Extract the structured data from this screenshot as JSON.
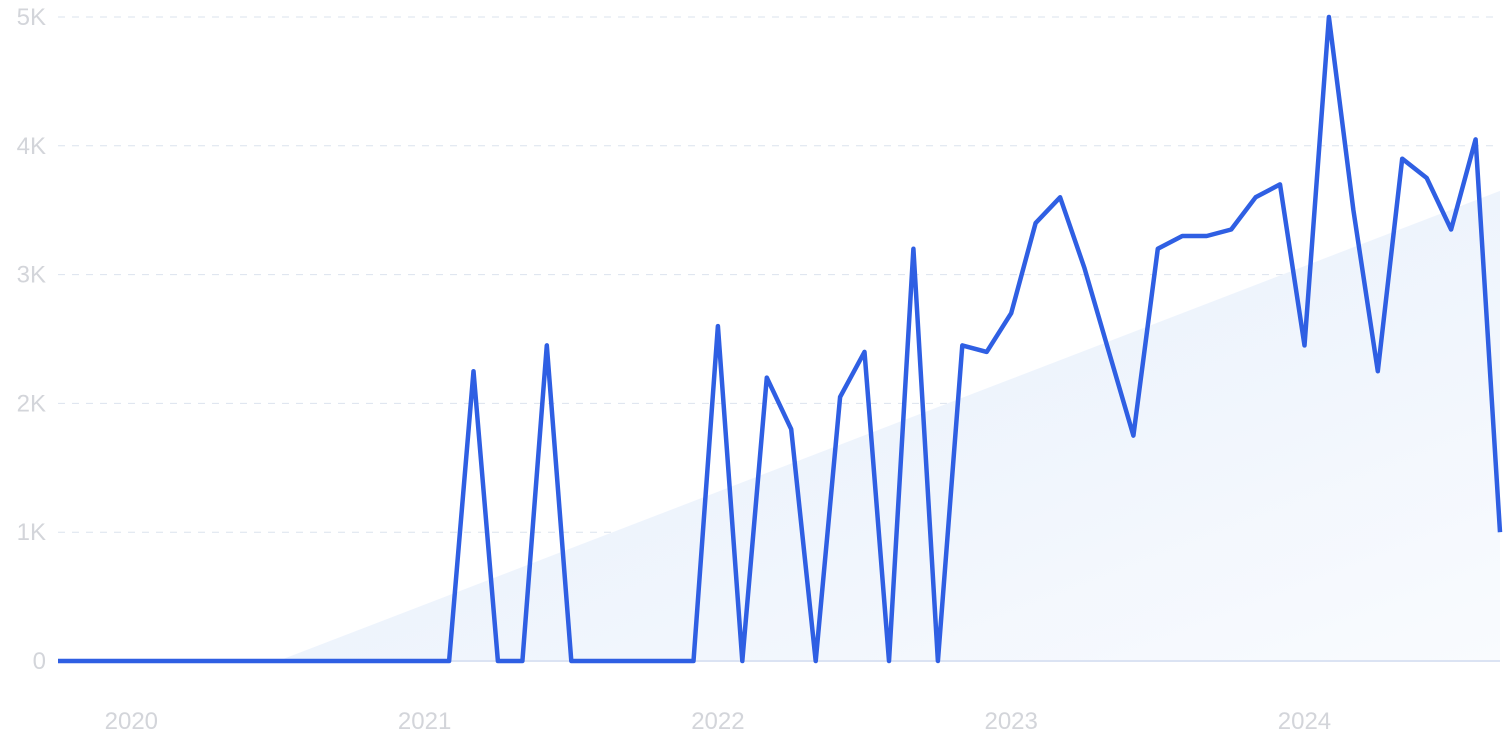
{
  "chart_data": {
    "type": "line",
    "title": "",
    "xlabel": "",
    "ylabel": "",
    "x_ticks": [
      "2020",
      "2021",
      "2022",
      "2023",
      "2024"
    ],
    "y_ticks": [
      "0",
      "1K",
      "2K",
      "3K",
      "4K",
      "5K"
    ],
    "ylim": [
      0,
      5000
    ],
    "grid": true,
    "colors": {
      "line": "#2f5fe3",
      "trend_fill": "#e6effb",
      "grid": "#dbe3ee",
      "tick_text": "#d3d5da"
    },
    "series": [
      {
        "values": [
          {
            "x": "2019-10",
            "y": 0
          },
          {
            "x": "2019-11",
            "y": 0
          },
          {
            "x": "2019-12",
            "y": 0
          },
          {
            "x": "2020-01",
            "y": 0
          },
          {
            "x": "2020-02",
            "y": 0
          },
          {
            "x": "2020-03",
            "y": 0
          },
          {
            "x": "2020-04",
            "y": 0
          },
          {
            "x": "2020-05",
            "y": 0
          },
          {
            "x": "2020-06",
            "y": 0
          },
          {
            "x": "2020-07",
            "y": 0
          },
          {
            "x": "2020-08",
            "y": 0
          },
          {
            "x": "2020-09",
            "y": 0
          },
          {
            "x": "2020-10",
            "y": 0
          },
          {
            "x": "2020-11",
            "y": 0
          },
          {
            "x": "2020-12",
            "y": 0
          },
          {
            "x": "2021-01",
            "y": 0
          },
          {
            "x": "2021-02",
            "y": 0
          },
          {
            "x": "2021-03",
            "y": 2250
          },
          {
            "x": "2021-04",
            "y": 0
          },
          {
            "x": "2021-05",
            "y": 0
          },
          {
            "x": "2021-06",
            "y": 2450
          },
          {
            "x": "2021-07",
            "y": 0
          },
          {
            "x": "2021-08",
            "y": 0
          },
          {
            "x": "2021-09",
            "y": 0
          },
          {
            "x": "2021-10",
            "y": 0
          },
          {
            "x": "2021-11",
            "y": 0
          },
          {
            "x": "2021-12",
            "y": 0
          },
          {
            "x": "2022-01",
            "y": 2600
          },
          {
            "x": "2022-02",
            "y": 0
          },
          {
            "x": "2022-03",
            "y": 2200
          },
          {
            "x": "2022-04",
            "y": 1800
          },
          {
            "x": "2022-05",
            "y": 0
          },
          {
            "x": "2022-06",
            "y": 2050
          },
          {
            "x": "2022-07",
            "y": 2400
          },
          {
            "x": "2022-08",
            "y": 0
          },
          {
            "x": "2022-09",
            "y": 3200
          },
          {
            "x": "2022-10",
            "y": 0
          },
          {
            "x": "2022-11",
            "y": 2450
          },
          {
            "x": "2022-12",
            "y": 2400
          },
          {
            "x": "2023-01",
            "y": 2700
          },
          {
            "x": "2023-02",
            "y": 3400
          },
          {
            "x": "2023-03",
            "y": 3600
          },
          {
            "x": "2023-04",
            "y": 3050
          },
          {
            "x": "2023-05",
            "y": 2400
          },
          {
            "x": "2023-06",
            "y": 1750
          },
          {
            "x": "2023-07",
            "y": 3200
          },
          {
            "x": "2023-08",
            "y": 3300
          },
          {
            "x": "2023-09",
            "y": 3300
          },
          {
            "x": "2023-10",
            "y": 3350
          },
          {
            "x": "2023-11",
            "y": 3600
          },
          {
            "x": "2023-12",
            "y": 3700
          },
          {
            "x": "2024-01",
            "y": 2450
          },
          {
            "x": "2024-02",
            "y": 5000
          },
          {
            "x": "2024-03",
            "y": 3500
          },
          {
            "x": "2024-04",
            "y": 2250
          },
          {
            "x": "2024-05",
            "y": 3900
          },
          {
            "x": "2024-06",
            "y": 3750
          },
          {
            "x": "2024-07",
            "y": 3350
          },
          {
            "x": "2024-08",
            "y": 4050
          },
          {
            "x": "2024-09",
            "y": 1000
          }
        ]
      }
    ],
    "trend": {
      "start": {
        "x": "2020-07",
        "y": 0
      },
      "end": {
        "x": "2024-09",
        "y": 3650
      }
    }
  }
}
